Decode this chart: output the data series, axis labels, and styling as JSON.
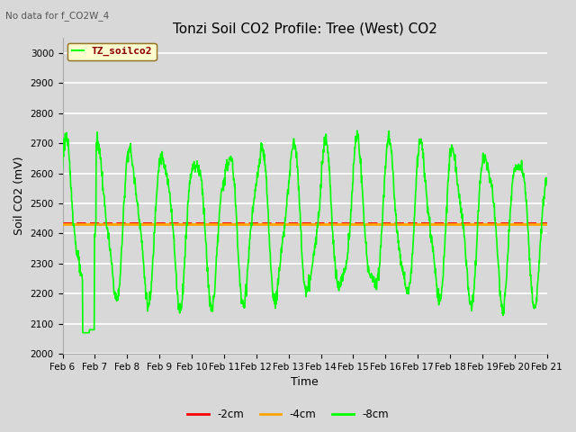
{
  "title": "Tonzi Soil CO2 Profile: Tree (West) CO2",
  "no_data_text": "No data for f_CO2W_4",
  "xlabel": "Time",
  "ylabel": "Soil CO2 (mV)",
  "ylim": [
    2000,
    3050
  ],
  "background_color": "#d8d8d8",
  "plot_bg_color": "#d8d8d8",
  "grid_color": "#ffffff",
  "green_line_color": "#00ff00",
  "red_line_color": "#ff0000",
  "orange_line_color": "#ffa500",
  "red_line_value": 2435,
  "orange_line_value": 2430,
  "legend_label_green": "TZ_soilco2",
  "legend_label_red": "-2cm",
  "legend_label_orange": "-4cm",
  "legend_label_lime": "-8cm",
  "x_tick_labels": [
    "Feb 6",
    "Feb 7",
    "Feb 8",
    "Feb 9",
    "Feb 10",
    "Feb 11",
    "Feb 12",
    "Feb 13",
    "Feb 14",
    "Feb 15",
    "Feb 16",
    "Feb 17",
    "Feb 18",
    "Feb 19",
    "Feb 20",
    "Feb 21"
  ],
  "title_fontsize": 11,
  "axis_fontsize": 9,
  "tick_fontsize": 7.5,
  "green_linewidth": 1.2,
  "flat_linewidth": 2.0
}
